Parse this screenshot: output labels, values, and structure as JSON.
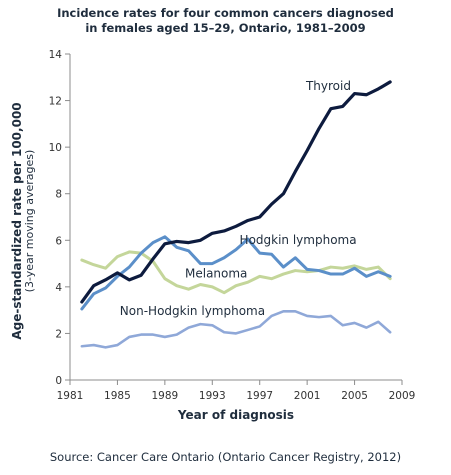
{
  "chart_data": {
    "type": "line",
    "title_lines": [
      "Incidence rates for four common cancers diagnosed",
      "in females aged 15–29, Ontario, 1981–2009"
    ],
    "xlabel": "Year of diagnosis",
    "ylabel": "Age-standardized rate per 100,000",
    "ylabel_sub": "(3-year moving averages)",
    "xlim": [
      1981,
      2009
    ],
    "ylim": [
      0,
      14
    ],
    "x_ticks": [
      "1981",
      "1985",
      "1989",
      "1993",
      "1997",
      "2001",
      "2005",
      "2009"
    ],
    "y_ticks": [
      "0",
      "2",
      "4",
      "6",
      "8",
      "10",
      "12",
      "14"
    ],
    "grid": false,
    "x": [
      1982,
      1983,
      1984,
      1985,
      1986,
      1987,
      1988,
      1989,
      1990,
      1991,
      1992,
      1993,
      1994,
      1995,
      1996,
      1997,
      1998,
      1999,
      2000,
      2001,
      2002,
      2003,
      2004,
      2005,
      2006,
      2007,
      2008
    ],
    "series": [
      {
        "name": "Thyroid",
        "color": "#0d1b3e",
        "values": [
          3.35,
          4.05,
          4.3,
          4.6,
          4.3,
          4.5,
          5.2,
          5.85,
          5.95,
          5.9,
          6.0,
          6.3,
          6.4,
          6.6,
          6.85,
          7.0,
          7.55,
          8.0,
          8.95,
          9.85,
          10.8,
          11.65,
          11.75,
          12.3,
          12.25,
          12.5,
          12.8
        ]
      },
      {
        "name": "Hodgkin lymphoma",
        "color": "#5b8fc9",
        "values": [
          3.05,
          3.7,
          3.95,
          4.45,
          4.85,
          5.45,
          5.9,
          6.15,
          5.7,
          5.55,
          5.0,
          5.0,
          5.25,
          5.6,
          6.05,
          5.45,
          5.4,
          4.85,
          5.25,
          4.75,
          4.7,
          4.55,
          4.55,
          4.8,
          4.45,
          4.65,
          4.45
        ]
      },
      {
        "name": "Melanoma",
        "color": "#c4d69a",
        "values": [
          5.15,
          4.95,
          4.8,
          5.3,
          5.5,
          5.45,
          5.1,
          4.35,
          4.05,
          3.9,
          4.1,
          4.0,
          3.75,
          4.05,
          4.2,
          4.45,
          4.35,
          4.55,
          4.7,
          4.65,
          4.7,
          4.85,
          4.8,
          4.9,
          4.75,
          4.85,
          4.35
        ]
      },
      {
        "name": "Non-Hodgkin lymphoma",
        "color": "#8fa8d8",
        "values": [
          1.45,
          1.5,
          1.4,
          1.5,
          1.85,
          1.95,
          1.95,
          1.85,
          1.95,
          2.25,
          2.4,
          2.35,
          2.05,
          2.0,
          2.15,
          2.3,
          2.75,
          2.95,
          2.95,
          2.75,
          2.7,
          2.75,
          2.35,
          2.45,
          2.25,
          2.5,
          2.05
        ]
      }
    ]
  },
  "source": "Source: Cancer Care Ontario (Ontario Cancer Registry, 2012)"
}
